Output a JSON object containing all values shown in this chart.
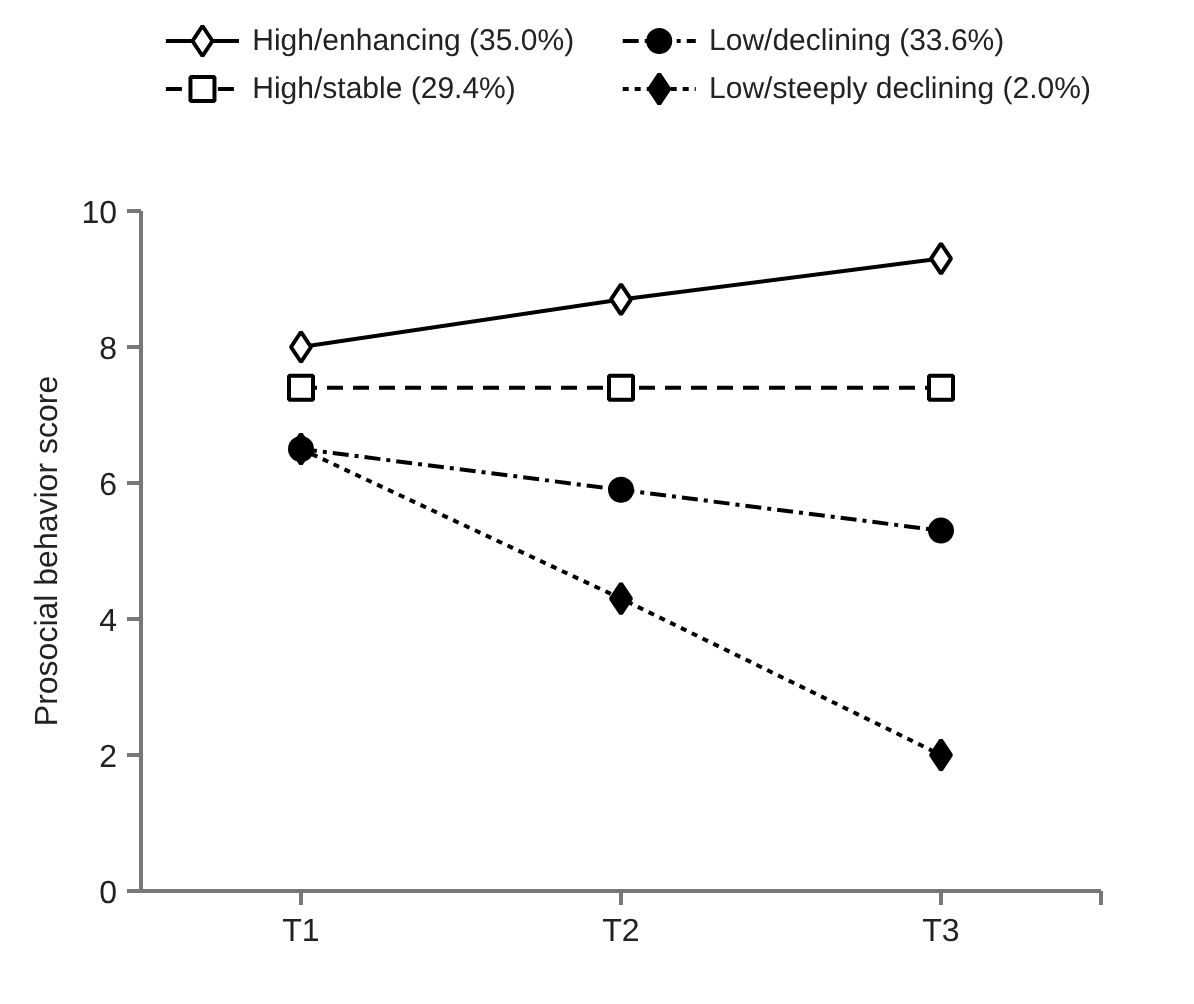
{
  "chart_data": {
    "type": "line",
    "categories": [
      "T1",
      "T2",
      "T3"
    ],
    "ylabel": "Prosocial behavior score",
    "ylim": [
      0,
      10
    ],
    "yticks": [
      0,
      2,
      4,
      6,
      8,
      10
    ],
    "grid": false,
    "legend": "top",
    "series": [
      {
        "name": "High/enhancing (35.0%)",
        "color": "#000000",
        "values": [
          8.0,
          8.7,
          9.3
        ],
        "marker": "diamond_open",
        "line_style": "solid"
      },
      {
        "name": "Low/declining (33.6%)",
        "color": "#000000",
        "values": [
          6.5,
          5.9,
          5.3
        ],
        "marker": "circle",
        "line_style": "dashdot"
      },
      {
        "name": "High/stable (29.4%)",
        "color": "#000000",
        "values": [
          7.4,
          7.4,
          7.4
        ],
        "marker": "square_open",
        "line_style": "dashed"
      },
      {
        "name": "Low/steeply declining (2.0%)",
        "color": "#000000",
        "values": [
          6.5,
          4.3,
          2.0
        ],
        "marker": "diamond",
        "line_style": "dotted"
      }
    ]
  }
}
